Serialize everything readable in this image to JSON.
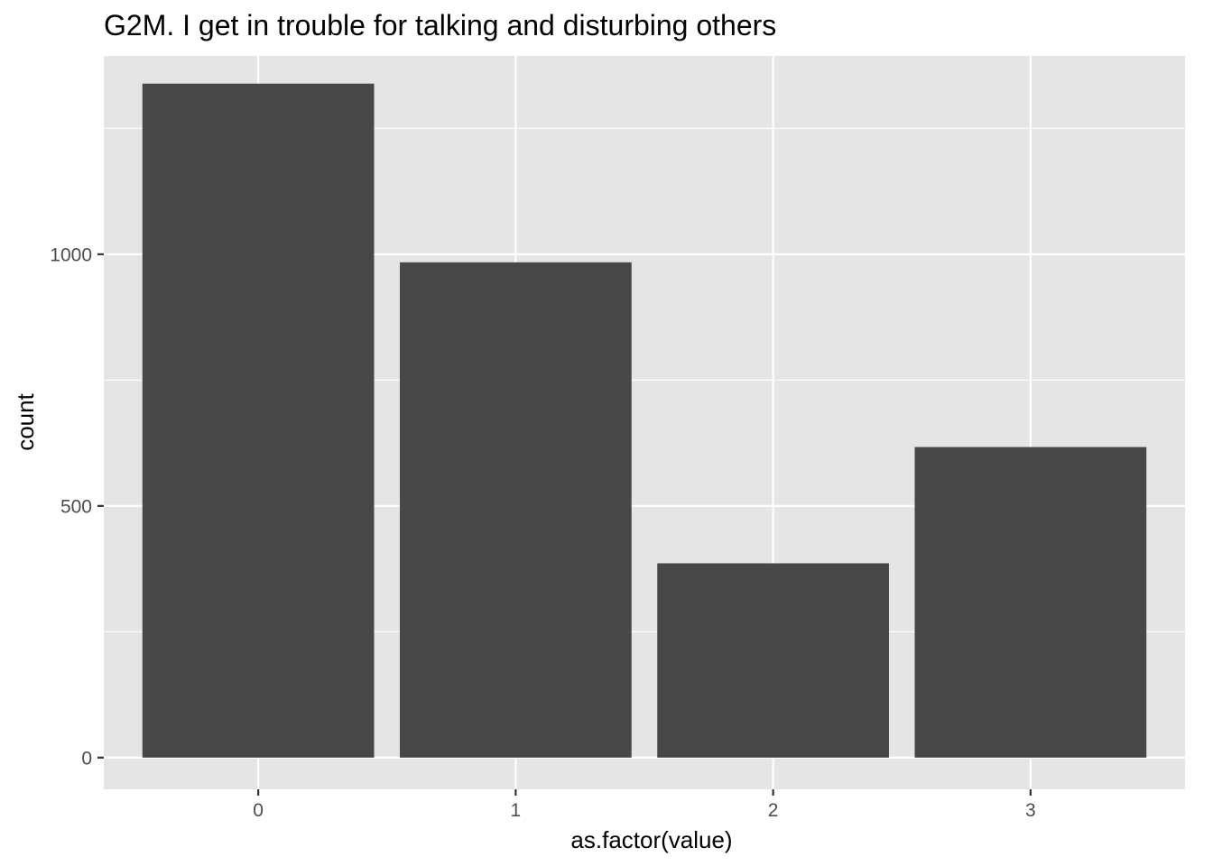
{
  "chart_data": {
    "type": "bar",
    "title": "G2M. I get in trouble for talking and disturbing others",
    "xlabel": "as.factor(value)",
    "ylabel": "count",
    "categories": [
      "0",
      "1",
      "2",
      "3"
    ],
    "values": [
      1339,
      984,
      386,
      617
    ],
    "ylim": [
      -63,
      1394
    ],
    "yticks": [
      0,
      500,
      1000
    ],
    "yticks_minor": [
      250,
      750,
      1250
    ],
    "grid": true,
    "legend": "none",
    "colors": {
      "panel": "#e5e5e5",
      "grid": "#ffffff",
      "bar": "#474747",
      "tick": "#333333"
    }
  }
}
